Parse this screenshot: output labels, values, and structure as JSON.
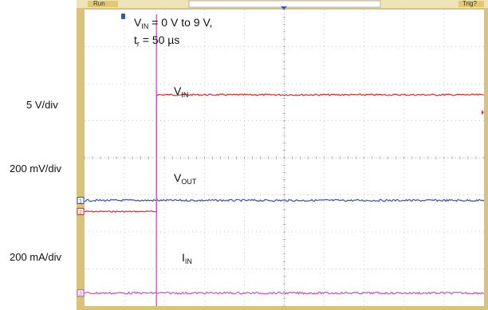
{
  "status_bar": {
    "left": "Run",
    "right": "Trig?"
  },
  "chart_data": {
    "type": "line",
    "title": "",
    "x_divisions": 10,
    "y_divisions": 8,
    "grid": true,
    "annotation": {
      "line1_prefix": "V",
      "line1_sub": "IN",
      "line1_suffix": " = 0 V to 9 V,",
      "line2_prefix": "t",
      "line2_sub": "r",
      "line2_suffix": " = 50 µs"
    },
    "scale_labels": [
      "5 V/div",
      "200 mV/div",
      "200 mA/div"
    ],
    "series": [
      {
        "name": "V",
        "name_sub": "IN",
        "channel": "2",
        "color": "#e8242a",
        "level_before_div": 5.45,
        "level_after_div": 2.3,
        "step_at_div": 1.8
      },
      {
        "name": "V",
        "name_sub": "OUT",
        "channel": "1",
        "color": "#2f55b5",
        "level_div": 5.15
      },
      {
        "name": "I",
        "name_sub": "IN",
        "channel": "3",
        "color": "#c64fbf",
        "level_div": 7.65,
        "spike_at_div": 1.8
      }
    ]
  }
}
